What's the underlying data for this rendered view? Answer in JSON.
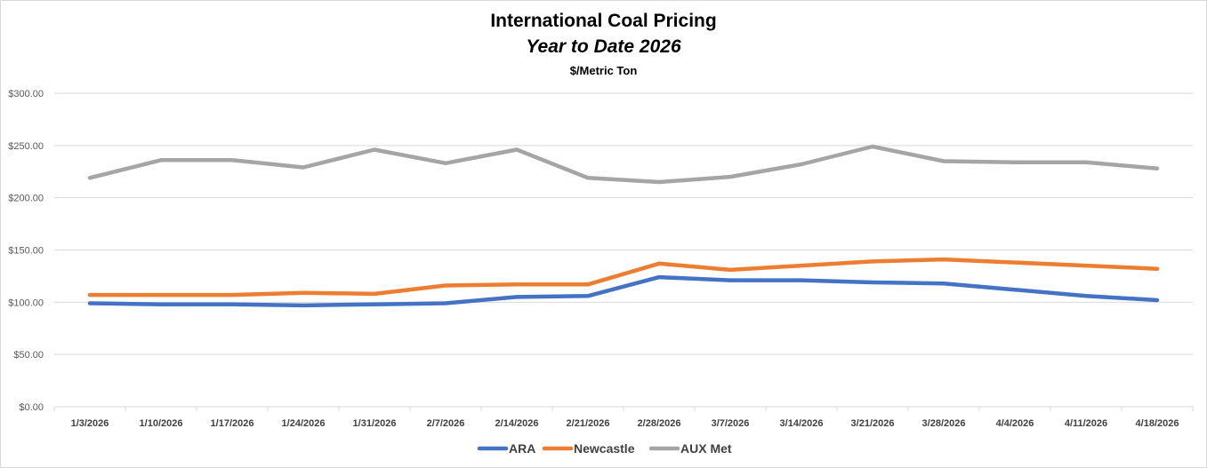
{
  "chart_data": {
    "type": "line",
    "title": "International Coal Pricing",
    "subtitle": "Year to Date 2026",
    "ylabel": "$/Metric Ton",
    "xlabel": "",
    "ylim": [
      0,
      300
    ],
    "yticks": [
      "$0.00",
      "$50.00",
      "$100.00",
      "$150.00",
      "$200.00",
      "$250.00",
      "$300.00"
    ],
    "ytick_values": [
      0,
      50,
      100,
      150,
      200,
      250,
      300
    ],
    "categories": [
      "1/3/2026",
      "1/10/2026",
      "1/17/2026",
      "1/24/2026",
      "1/31/2026",
      "2/7/2026",
      "2/14/2026",
      "2/21/2026",
      "2/28/2026",
      "3/7/2026",
      "3/14/2026",
      "3/21/2026",
      "3/28/2026",
      "4/4/2026",
      "4/11/2026",
      "4/18/2026"
    ],
    "grid": true,
    "legend_position": "bottom",
    "series": [
      {
        "name": "ARA",
        "color": "#4472C4",
        "values": [
          99,
          98,
          98,
          97,
          98,
          99,
          105,
          106,
          124,
          121,
          121,
          119,
          118,
          112,
          106,
          102
        ]
      },
      {
        "name": "Newcastle",
        "color": "#ED7D31",
        "values": [
          107,
          107,
          107,
          109,
          108,
          116,
          117,
          117,
          137,
          131,
          135,
          139,
          141,
          138,
          135,
          132
        ]
      },
      {
        "name": "AUX Met",
        "color": "#A5A5A5",
        "values": [
          219,
          236,
          236,
          229,
          246,
          233,
          246,
          219,
          215,
          220,
          232,
          249,
          235,
          234,
          234,
          228
        ]
      }
    ]
  }
}
